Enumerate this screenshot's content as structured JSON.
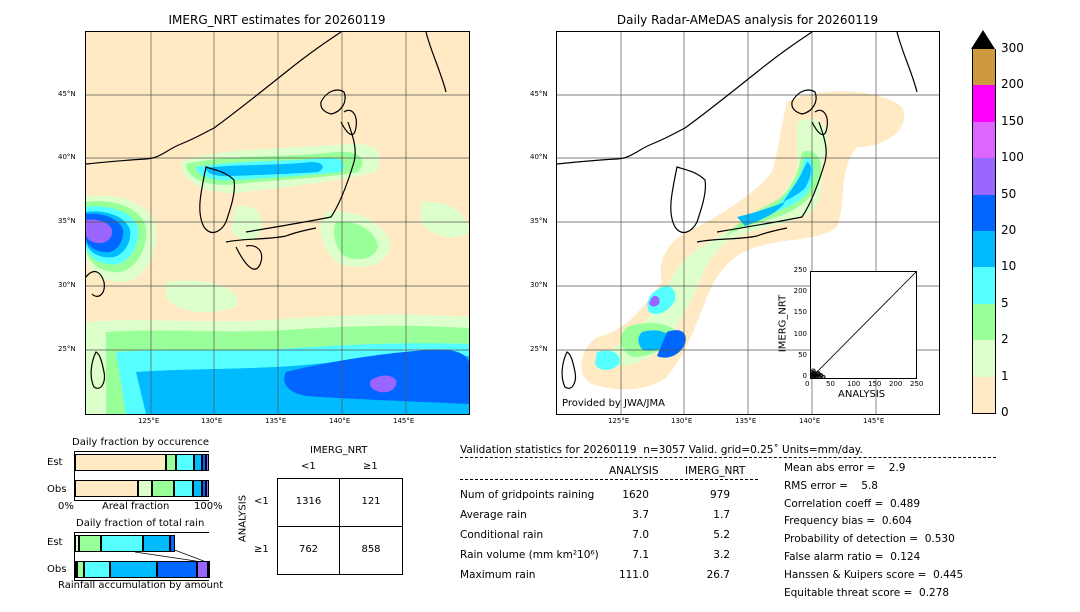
{
  "maps": {
    "left_title": "IMERG_NRT estimates for 20260119",
    "right_title": "Daily Radar-AMeDAS analysis for 20260119",
    "provided_by": "Provided by JWA/JMA",
    "lat_labels": [
      "45°N",
      "40°N",
      "35°N",
      "30°N",
      "25°N"
    ],
    "lon_labels": [
      "125°E",
      "130°E",
      "135°E",
      "140°E",
      "145°E"
    ]
  },
  "colorbar": {
    "ticks": [
      "300",
      "200",
      "150",
      "100",
      "50",
      "20",
      "10",
      "5",
      "2",
      "1",
      "0"
    ],
    "colors": [
      "#cc9a3c",
      "#ff00ff",
      "#dd66ff",
      "#9966ff",
      "#0066ff",
      "#00bbff",
      "#55ffff",
      "#99ff99",
      "#ddffcc",
      "#ffeac4"
    ]
  },
  "chart_data": [
    {
      "type": "scatter",
      "title": "",
      "xlabel": "ANALYSIS",
      "ylabel": "IMERG_NRT",
      "xlim": [
        0,
        250
      ],
      "ylim": [
        0,
        250
      ],
      "xticks": [
        "0",
        "50",
        "100",
        "150",
        "200",
        "250"
      ],
      "yticks": [
        "0",
        "50",
        "100",
        "150",
        "200",
        "250"
      ],
      "points": [
        [
          2,
          1
        ],
        [
          3,
          4
        ],
        [
          5,
          2
        ],
        [
          4,
          7
        ],
        [
          6,
          3
        ],
        [
          8,
          5
        ],
        [
          7,
          9
        ],
        [
          10,
          4
        ],
        [
          12,
          6
        ],
        [
          9,
          11
        ],
        [
          14,
          3
        ],
        [
          15,
          8
        ],
        [
          11,
          2
        ],
        [
          6,
          12
        ],
        [
          18,
          5
        ],
        [
          20,
          3
        ],
        [
          3,
          14
        ],
        [
          16,
          10
        ],
        [
          13,
          1
        ],
        [
          22,
          6
        ],
        [
          25,
          4
        ],
        [
          8,
          16
        ],
        [
          5,
          18
        ],
        [
          28,
          2
        ],
        [
          19,
          9
        ],
        [
          17,
          12
        ],
        [
          24,
          7
        ],
        [
          30,
          3
        ],
        [
          4,
          10
        ],
        [
          1,
          6
        ],
        [
          2,
          13
        ],
        [
          10,
          10
        ]
      ]
    },
    {
      "type": "bar",
      "title": "Daily fraction by occurence",
      "xlabel": "Areal fraction",
      "left_tick": "0%",
      "right_tick": "100%",
      "categories": [
        "Est",
        "Obs"
      ],
      "series": [
        {
          "values": [
            0.676,
            0.468
          ]
        },
        {
          "values": [
            0.0,
            0.11
          ]
        },
        {
          "values": [
            0.075,
            0.16
          ]
        },
        {
          "values": [
            0.138,
            0.139
          ]
        },
        {
          "values": [
            0.057,
            0.069
          ]
        },
        {
          "values": [
            0.03,
            0.03
          ]
        },
        {
          "values": [
            0.024,
            0.024
          ]
        }
      ],
      "colors": [
        "#ffeac4",
        "#ddffcc",
        "#99ff99",
        "#55ffff",
        "#00bbff",
        "#0066ff",
        "#9966ff"
      ]
    },
    {
      "type": "bar",
      "title": "Daily fraction of total rain",
      "xlabel": "Rainfall accumulation by amount",
      "categories": [
        "Est",
        "Obs"
      ],
      "series": [
        {
          "values": [
            0.032,
            0.016
          ]
        },
        {
          "values": [
            0.162,
            0.048
          ]
        },
        {
          "values": [
            0.317,
            0.2
          ]
        },
        {
          "values": [
            0.198,
            0.35
          ]
        },
        {
          "values": [
            0.04,
            0.296
          ]
        },
        {
          "values": [
            0.0,
            0.08
          ]
        },
        {
          "values": [
            0.0,
            0.01
          ]
        }
      ],
      "colors": [
        "#ddffcc",
        "#99ff99",
        "#55ffff",
        "#00bbff",
        "#0066ff",
        "#9966ff",
        "#dd66ff"
      ]
    }
  ],
  "contingency": {
    "col_header": "IMERG_NRT",
    "row_header": "ANALYSIS",
    "col_labels": [
      "<1",
      "≥1"
    ],
    "row_labels": [
      "<1",
      "≥1"
    ],
    "cells": [
      [
        "1316",
        "121"
      ],
      [
        "762",
        "858"
      ]
    ]
  },
  "validation": {
    "header": "Validation statistics for 20260119  n=3057 Valid. grid=0.25˚ Units=mm/day.",
    "col1": "ANALYSIS",
    "col2": "IMERG_NRT",
    "rows": [
      {
        "label": "Num of gridpoints raining",
        "a": "1620",
        "b": "979"
      },
      {
        "label": "Average rain",
        "a": "3.7",
        "b": "1.7"
      },
      {
        "label": "Conditional rain",
        "a": "7.0",
        "b": "5.2"
      },
      {
        "label": "Rain volume (mm km²10⁶)",
        "a": "7.1",
        "b": "3.2"
      },
      {
        "label": "Maximum rain",
        "a": "111.0",
        "b": "26.7"
      }
    ],
    "scores": [
      "Mean abs error =    2.9",
      "RMS error =    5.8",
      "Correlation coeff =  0.489",
      "Frequency bias =  0.604",
      "Probability of detection =  0.530",
      "False alarm ratio =  0.124",
      "Hanssen & Kuipers score =  0.445",
      "Equitable threat score =  0.278"
    ]
  }
}
